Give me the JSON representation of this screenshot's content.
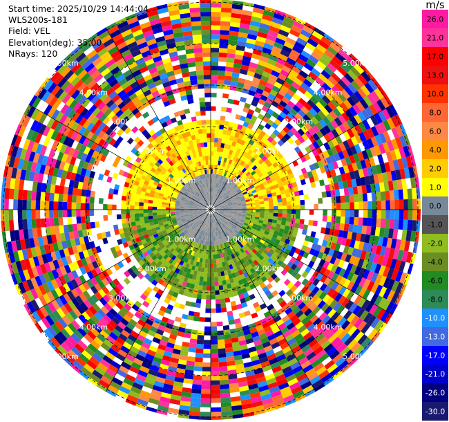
{
  "header": {
    "start_time": "Start time: 2025/10/29 14:44:04",
    "site": "WLS200s-181",
    "field": "Field: VEL",
    "elevation": "Elevation(deg): 35.00",
    "nrays": "NRays: 120"
  },
  "range_rings": {
    "labels": [
      "1.00km",
      "2.00km",
      "3.00km",
      "4.00km",
      "5.00km"
    ]
  },
  "colorbar": {
    "title": "m/s",
    "levels": [
      "26.0",
      "21.0",
      "17.0",
      "13.0",
      "10.0",
      "8.0",
      "6.0",
      "4.0",
      "2.0",
      "1.0",
      "0.0",
      "-1.0",
      "-2.0",
      "-4.0",
      "-6.0",
      "-8.0",
      "-10.0",
      "-13.0",
      "-17.0",
      "-21.0",
      "-26.0",
      "-30.0"
    ],
    "colors": [
      "#ff1aa3",
      "#ff3399",
      "#ff0000",
      "#ee1111",
      "#ff3300",
      "#ff6633",
      "#ff8844",
      "#ff9900",
      "#ffcc00",
      "#ffff00",
      "#778899",
      "#555555",
      "#8fbc1f",
      "#6b8e23",
      "#228b22",
      "#2e8b57",
      "#1e90ff",
      "#4169e1",
      "#0000ff",
      "#0000cd",
      "#000080",
      "#191970"
    ]
  },
  "icons": {
    "ppi_display": "radar-ppi-display"
  }
}
